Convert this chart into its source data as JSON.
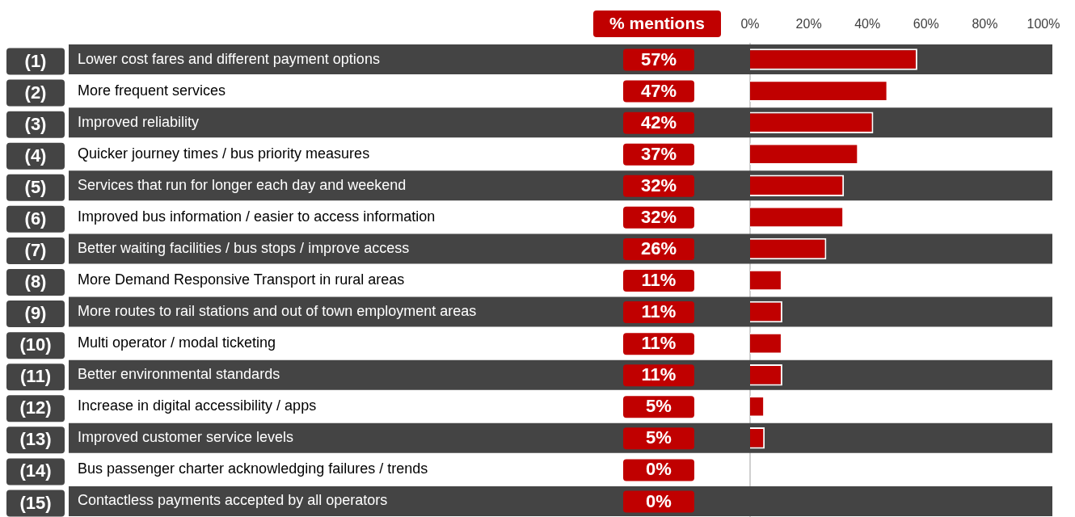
{
  "chart_data": {
    "type": "bar",
    "orientation": "horizontal",
    "title": "% mentions",
    "categories": [
      "(1) Lower cost fares and different payment options",
      "(2) More frequent services",
      "(3) Improved reliability",
      "(4) Quicker journey times / bus priority measures",
      "(5) Services that run for longer each day and weekend",
      "(6) Improved bus information / easier to access information",
      "(7) Better waiting facilities / bus stops / improve access",
      "(8) More Demand Responsive Transport in rural areas",
      "(9) More routes to rail stations and out of town employment areas",
      "(10) Multi operator / modal ticketing",
      "(11) Better environmental standards",
      "(12) Increase in digital accessibility / apps",
      "(13) Improved customer service levels",
      "(14) Bus passenger charter acknowledging failures / trends",
      "(15) Contactless payments accepted by all operators"
    ],
    "values": [
      57,
      47,
      42,
      37,
      32,
      32,
      26,
      11,
      11,
      11,
      11,
      5,
      5,
      0,
      0
    ],
    "value_labels": [
      "57%",
      "47%",
      "42%",
      "37%",
      "32%",
      "32%",
      "26%",
      "11%",
      "11%",
      "11%",
      "11%",
      "5%",
      "5%",
      "0%",
      "0%"
    ],
    "color": "#c00000",
    "xlim": [
      0,
      100
    ],
    "xticks": [
      {
        "value": 0,
        "label": "0%"
      },
      {
        "value": 20,
        "label": "20%"
      },
      {
        "value": 40,
        "label": "40%"
      },
      {
        "value": 60,
        "label": "60%"
      },
      {
        "value": 80,
        "label": "80%"
      },
      {
        "value": 100,
        "label": "100%"
      }
    ],
    "grid": false,
    "legend": false
  }
}
